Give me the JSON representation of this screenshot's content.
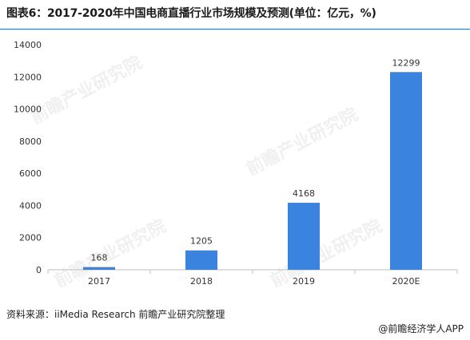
{
  "title": "图表6：2017-2020年中国电商直播行业市场规模及预测(单位：亿元，%)",
  "source": "资料来源：iiMedia Research 前瞻产业研究院整理",
  "brand": "@前瞻经济学人APP",
  "watermark_text": "前瞻产业研究院",
  "colors": {
    "bar": "#3a84e0",
    "axis": "#bfbfbf",
    "title_rule": "#2f74c6"
  },
  "chart_data": {
    "type": "bar",
    "title": "图表6：2017-2020年中国电商直播行业市场规模及预测(单位：亿元，%)",
    "categories": [
      "2017",
      "2018",
      "2019",
      "2020E"
    ],
    "values": [
      168,
      1205,
      4168,
      12299
    ],
    "ylim": [
      0,
      14000
    ],
    "yticks": [
      0,
      2000,
      4000,
      6000,
      8000,
      10000,
      12000,
      14000
    ],
    "xlabel": "",
    "ylabel": "",
    "grid": false,
    "data_labels": true
  }
}
